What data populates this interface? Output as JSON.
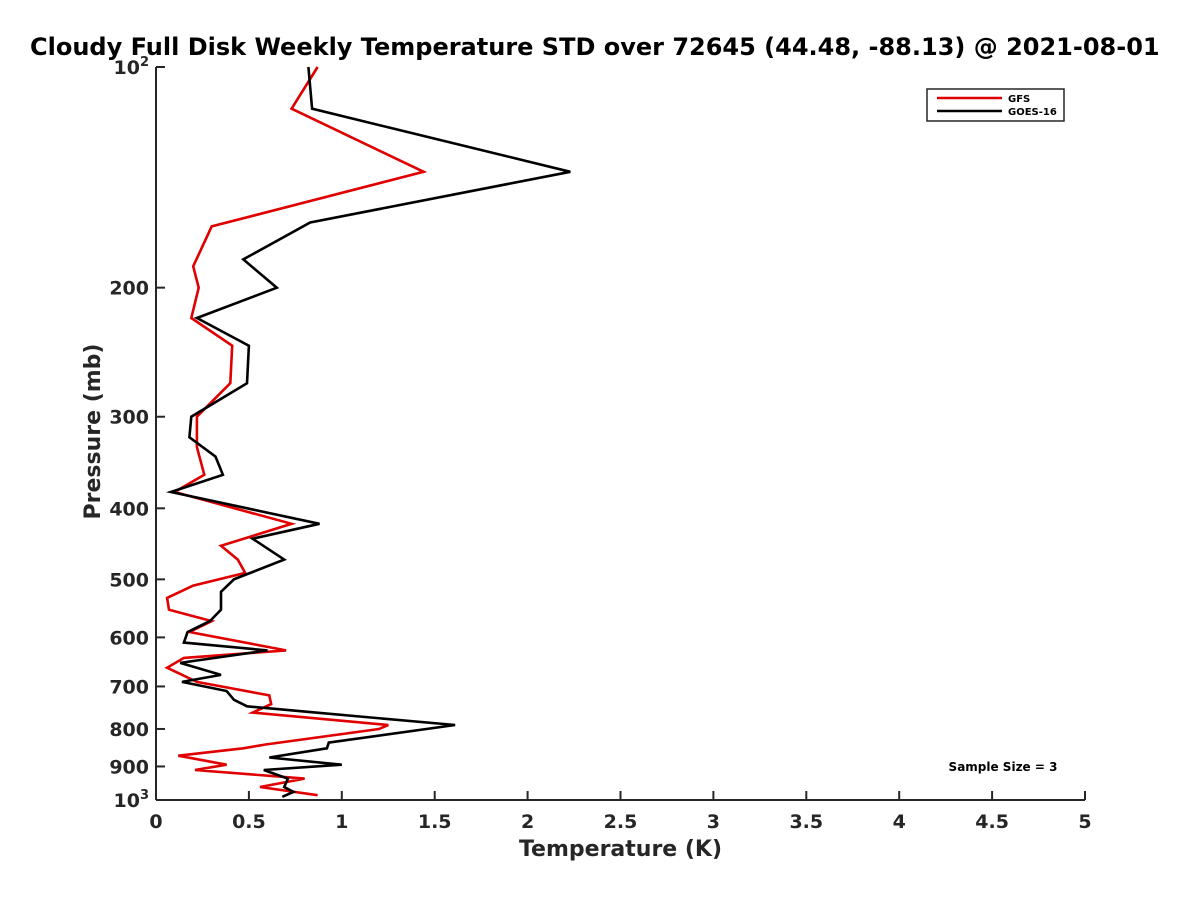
{
  "chart_data": {
    "type": "line",
    "title": "Cloudy Full Disk Weekly Temperature STD over 72645 (44.48, -88.13) @ 2021-08-01",
    "xlabel": "Temperature (K)",
    "ylabel": "Pressure (mb)",
    "xlim": [
      0,
      5
    ],
    "ylim": [
      100,
      1000
    ],
    "y_scale": "log",
    "y_reversed": true,
    "grid": false,
    "legend_position": "top-right",
    "x_ticks": [
      "0",
      "0.5",
      "1",
      "1.5",
      "2",
      "2.5",
      "3",
      "3.5",
      "4",
      "4.5",
      "5"
    ],
    "x_tick_values": [
      0,
      0.5,
      1,
      1.5,
      2,
      2.5,
      3,
      3.5,
      4,
      4.5,
      5
    ],
    "y_ticks": [
      {
        "value": 100,
        "base": "10",
        "exp": "2"
      },
      {
        "value": 200,
        "base": "200",
        "exp": ""
      },
      {
        "value": 300,
        "base": "300",
        "exp": ""
      },
      {
        "value": 400,
        "base": "400",
        "exp": ""
      },
      {
        "value": 500,
        "base": "500",
        "exp": ""
      },
      {
        "value": 600,
        "base": "600",
        "exp": ""
      },
      {
        "value": 700,
        "base": "700",
        "exp": ""
      },
      {
        "value": 800,
        "base": "800",
        "exp": ""
      },
      {
        "value": 900,
        "base": "900",
        "exp": ""
      },
      {
        "value": 1000,
        "base": "10",
        "exp": "3"
      }
    ],
    "annotation": "Sample Size = 3",
    "series": [
      {
        "name": "GFS",
        "color": "#e00000",
        "points": [
          [
            0.87,
            100
          ],
          [
            0.73,
            114
          ],
          [
            1.44,
            139
          ],
          [
            0.3,
            165
          ],
          [
            0.2,
            187
          ],
          [
            0.23,
            200
          ],
          [
            0.19,
            220
          ],
          [
            0.41,
            240
          ],
          [
            0.4,
            270
          ],
          [
            0.22,
            300
          ],
          [
            0.22,
            330
          ],
          [
            0.26,
            360
          ],
          [
            0.1,
            380
          ],
          [
            0.73,
            420
          ],
          [
            0.35,
            450
          ],
          [
            0.44,
            470
          ],
          [
            0.48,
            490
          ],
          [
            0.2,
            510
          ],
          [
            0.06,
            530
          ],
          [
            0.07,
            550
          ],
          [
            0.3,
            570
          ],
          [
            0.18,
            590
          ],
          [
            0.7,
            625
          ],
          [
            0.15,
            640
          ],
          [
            0.06,
            660
          ],
          [
            0.22,
            690
          ],
          [
            0.61,
            720
          ],
          [
            0.62,
            740
          ],
          [
            0.52,
            760
          ],
          [
            1.25,
            790
          ],
          [
            1.2,
            800
          ],
          [
            0.59,
            840
          ],
          [
            0.47,
            850
          ],
          [
            0.12,
            870
          ],
          [
            0.38,
            895
          ],
          [
            0.21,
            910
          ],
          [
            0.8,
            935
          ],
          [
            0.56,
            960
          ],
          [
            0.87,
            985
          ]
        ]
      },
      {
        "name": "GOES-16",
        "color": "#000000",
        "points": [
          [
            0.82,
            100
          ],
          [
            0.84,
            114
          ],
          [
            2.23,
            139
          ],
          [
            0.83,
            163
          ],
          [
            0.47,
            183
          ],
          [
            0.65,
            200
          ],
          [
            0.22,
            220
          ],
          [
            0.5,
            240
          ],
          [
            0.49,
            270
          ],
          [
            0.19,
            300
          ],
          [
            0.18,
            320
          ],
          [
            0.32,
            340
          ],
          [
            0.36,
            360
          ],
          [
            0.08,
            380
          ],
          [
            0.88,
            420
          ],
          [
            0.52,
            440
          ],
          [
            0.69,
            470
          ],
          [
            0.42,
            500
          ],
          [
            0.35,
            520
          ],
          [
            0.35,
            550
          ],
          [
            0.29,
            570
          ],
          [
            0.17,
            590
          ],
          [
            0.15,
            610
          ],
          [
            0.6,
            625
          ],
          [
            0.13,
            650
          ],
          [
            0.35,
            675
          ],
          [
            0.14,
            690
          ],
          [
            0.38,
            710
          ],
          [
            0.42,
            730
          ],
          [
            0.49,
            745
          ],
          [
            0.86,
            760
          ],
          [
            1.61,
            790
          ],
          [
            0.93,
            835
          ],
          [
            0.92,
            850
          ],
          [
            0.61,
            875
          ],
          [
            1.0,
            895
          ],
          [
            0.58,
            910
          ],
          [
            0.71,
            935
          ],
          [
            0.69,
            960
          ],
          [
            0.74,
            975
          ],
          [
            0.68,
            990
          ]
        ]
      }
    ]
  }
}
